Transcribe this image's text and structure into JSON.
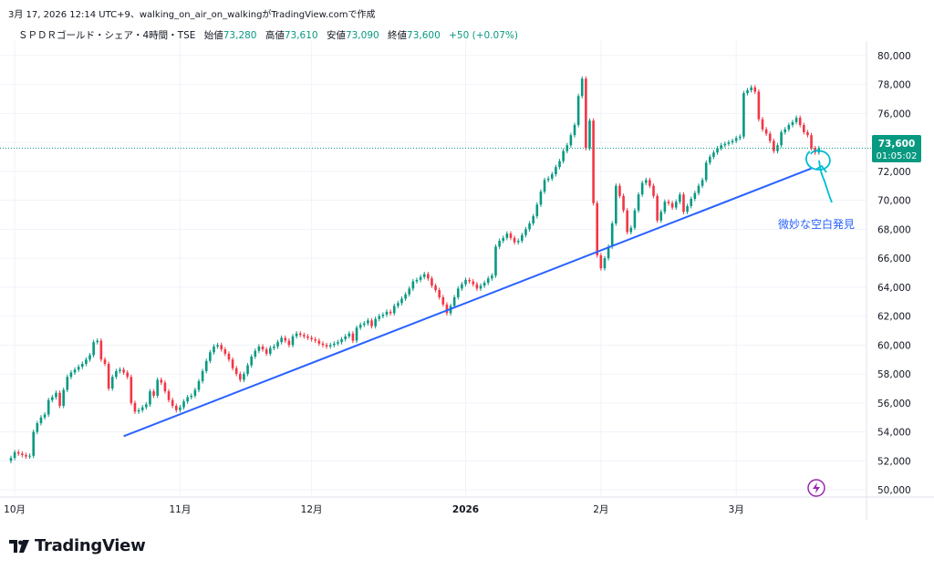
{
  "header": {
    "caption": "3月 17, 2026 12:14 UTC+9、walking_on_air_on_walkingがTradingView.comで作成"
  },
  "legend": {
    "symbol": "ＳＰＤＲゴールド・シェア・4時間・TSE",
    "open_label": "始値",
    "open": "73,280",
    "high_label": "高値",
    "high": "73,610",
    "low_label": "安値",
    "low": "73,090",
    "close_label": "終値",
    "close": "73,600",
    "change": "+50 (+0.07%)"
  },
  "colors": {
    "up": "#089981",
    "down": "#f23645",
    "trend": "#2962ff",
    "annotation": "#2962ff",
    "sketch": "#00bcd4",
    "badge": "#9c27b0"
  },
  "price_tag": {
    "price": "73,600",
    "countdown": "01:05:02"
  },
  "annotation": {
    "text": "微妙な空白発見"
  },
  "branding": {
    "logo_text": "TradingView"
  },
  "chart_data": {
    "type": "candlestick",
    "title": "ＳＰＤＲゴールド・シェア・4時間・TSE",
    "ylim": [
      49500,
      81000
    ],
    "y_ticks": [
      50000,
      52000,
      54000,
      56000,
      58000,
      60000,
      62000,
      64000,
      66000,
      68000,
      70000,
      72000,
      74000,
      76000,
      78000,
      80000
    ],
    "y_tick_labels": [
      "50,000",
      "52,000",
      "54,000",
      "56,000",
      "58,000",
      "60,000",
      "62,000",
      "64,000",
      "66,000",
      "68,000",
      "70,000",
      "72,000",
      "74,000",
      "76,000",
      "78,000",
      "80,000"
    ],
    "x_ticks": [
      {
        "label": "10月",
        "index": 1,
        "bold": false
      },
      {
        "label": "11月",
        "index": 45,
        "bold": false
      },
      {
        "label": "12月",
        "index": 80,
        "bold": false
      },
      {
        "label": "2026",
        "index": 121,
        "bold": true
      },
      {
        "label": "2月",
        "index": 157,
        "bold": false
      },
      {
        "label": "3月",
        "index": 193,
        "bold": false
      }
    ],
    "last_price": 73600,
    "closes": [
      52200,
      52600,
      52500,
      52400,
      52300,
      52350,
      54000,
      54600,
      55000,
      55200,
      56200,
      56400,
      56700,
      55800,
      56900,
      57800,
      58100,
      58300,
      58500,
      58700,
      59000,
      59300,
      60200,
      60300,
      59000,
      58700,
      57000,
      57800,
      58200,
      58300,
      58100,
      57800,
      56000,
      55400,
      55500,
      55700,
      55900,
      56800,
      56500,
      57600,
      57400,
      56800,
      56200,
      55800,
      55500,
      55700,
      56100,
      56400,
      56500,
      56900,
      57500,
      58200,
      58900,
      59500,
      59900,
      60000,
      59700,
      59400,
      59000,
      58400,
      58000,
      57600,
      58000,
      58600,
      59200,
      59600,
      59900,
      59700,
      59400,
      59800,
      59900,
      60200,
      60500,
      60300,
      60000,
      60600,
      60800,
      60700,
      60600,
      60500,
      60400,
      60300,
      60100,
      60000,
      59900,
      60000,
      60100,
      60200,
      60400,
      60600,
      60800,
      60300,
      61200,
      61400,
      61500,
      61700,
      61300,
      61800,
      62000,
      62100,
      62300,
      62200,
      62700,
      62900,
      63200,
      63500,
      63900,
      64400,
      64500,
      64700,
      64900,
      64600,
      64100,
      63800,
      63300,
      62800,
      62200,
      62700,
      63300,
      63900,
      64200,
      64500,
      64400,
      64200,
      63900,
      64100,
      64300,
      64600,
      64800,
      66800,
      67200,
      67400,
      67700,
      67400,
      67100,
      67200,
      67600,
      68000,
      68400,
      68900,
      69700,
      70600,
      71400,
      71500,
      71800,
      72300,
      72700,
      73400,
      73800,
      74500,
      75200,
      77200,
      78400,
      73600,
      75500,
      69800,
      66200,
      65300,
      66000,
      66800,
      68400,
      71000,
      70300,
      69300,
      67800,
      68100,
      69300,
      70400,
      71200,
      71400,
      71000,
      70300,
      68600,
      69200,
      69900,
      69800,
      69500,
      69900,
      70400,
      69200,
      69600,
      70100,
      70500,
      71000,
      71400,
      72600,
      73000,
      73300,
      73600,
      73800,
      73900,
      74000,
      74100,
      74300,
      74400,
      77400,
      77600,
      77800,
      77500,
      75600,
      74900,
      74600,
      74100,
      73400,
      73800,
      74700,
      74900,
      75200,
      75400,
      75700,
      75200,
      74700,
      74500,
      73600,
      73300,
      73600
    ],
    "trendline": {
      "start": {
        "index": 30,
        "price": 53700
      },
      "end": {
        "index": 213,
        "price": 72200
      }
    }
  }
}
